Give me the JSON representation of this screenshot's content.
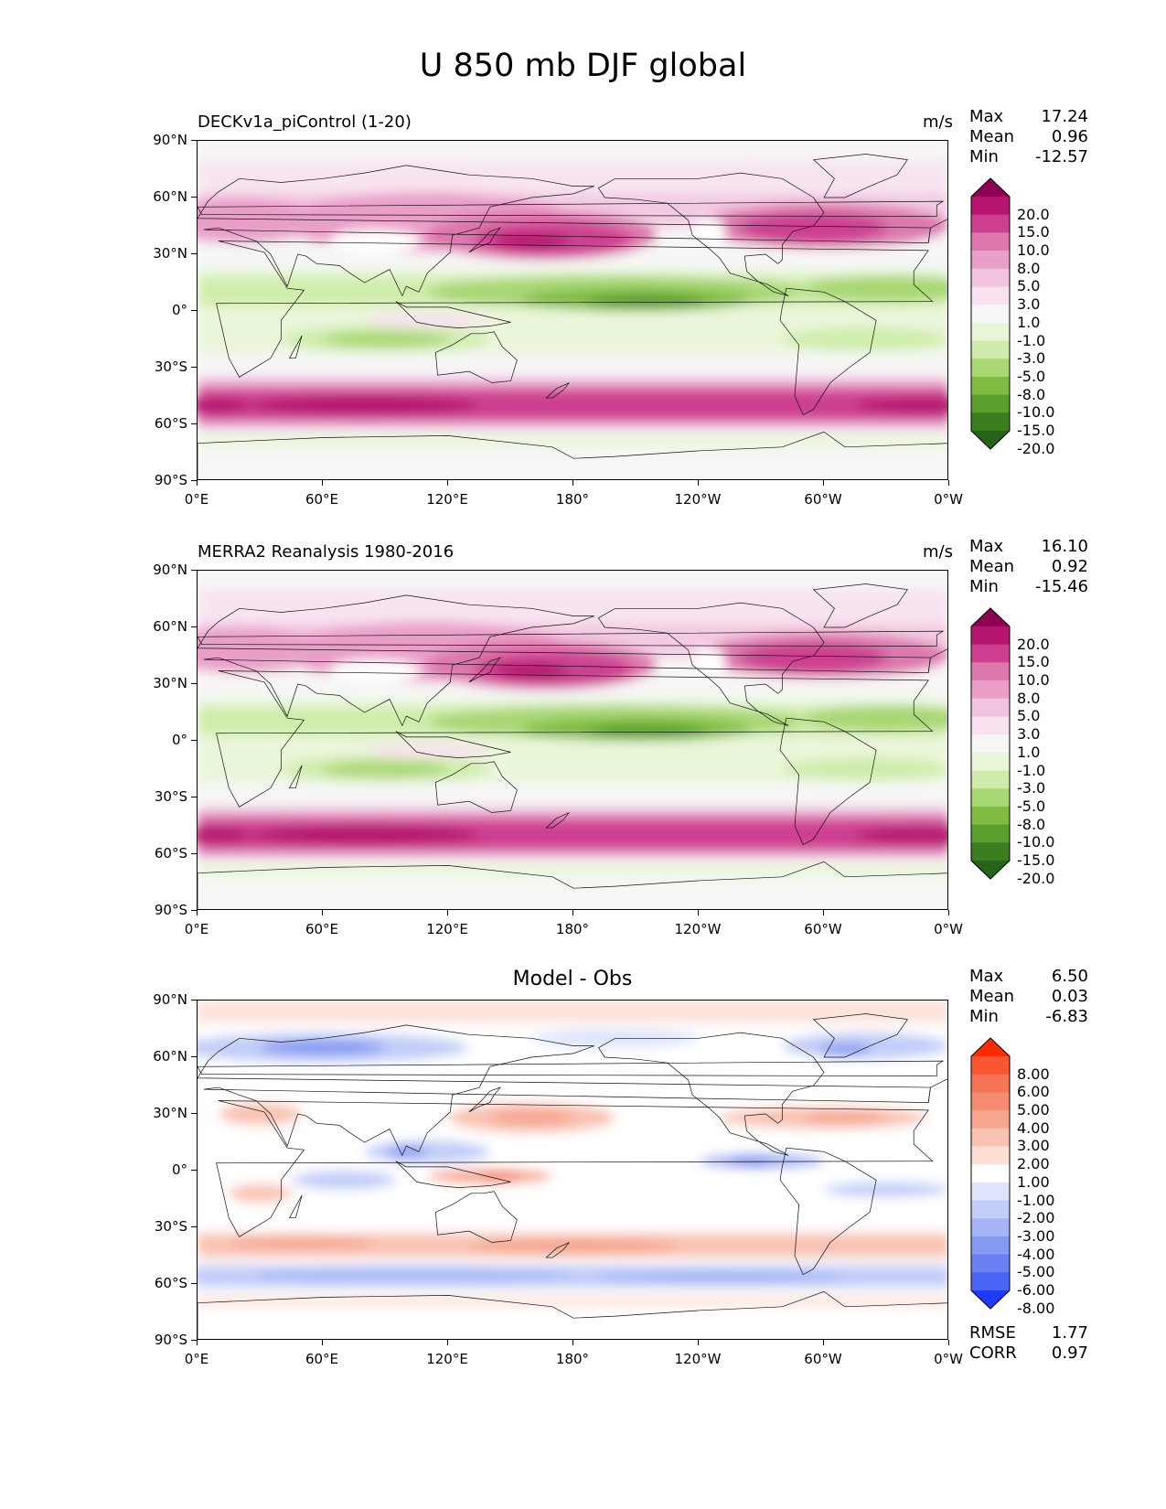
{
  "figure": {
    "title": "U 850 mb DJF global"
  },
  "axes": {
    "y_ticks": [
      "90°N",
      "60°N",
      "30°N",
      "0°",
      "30°S",
      "60°S",
      "90°S"
    ],
    "x_ticks": [
      "0°E",
      "60°E",
      "120°E",
      "180°",
      "120°W",
      "60°W",
      "0°W"
    ]
  },
  "panels": [
    {
      "title_left": "DECKv1a_piControl (1-20)",
      "title_center": "",
      "units": "m/s",
      "stats": [
        {
          "label": "Max",
          "value": "17.24"
        },
        {
          "label": "Mean",
          "value": "0.96"
        },
        {
          "label": "Min",
          "value": "-12.57"
        }
      ],
      "colorbar": {
        "labels": [
          "20.0",
          "15.0",
          "10.0",
          "8.0",
          "5.0",
          "3.0",
          "1.0",
          "-1.0",
          "-3.0",
          "-5.0",
          "-8.0",
          "-10.0",
          "-15.0",
          "-20.0"
        ],
        "colors": [
          "#8e0152",
          "#b5156e",
          "#cd3f91",
          "#de77ae",
          "#ea9fc9",
          "#f1c3df",
          "#f8e2ef",
          "#f6f6f6",
          "#e9f5d7",
          "#cfecaa",
          "#a9d774",
          "#7fbc41",
          "#5a9e2e",
          "#3b7e1f",
          "#276419"
        ]
      },
      "footer": []
    },
    {
      "title_left": "MERRA2 Reanalysis 1980-2016",
      "title_center": "",
      "units": "m/s",
      "stats": [
        {
          "label": "Max",
          "value": "16.10"
        },
        {
          "label": "Mean",
          "value": "0.92"
        },
        {
          "label": "Min",
          "value": "-15.46"
        }
      ],
      "colorbar": {
        "labels": [
          "20.0",
          "15.0",
          "10.0",
          "8.0",
          "5.0",
          "3.0",
          "1.0",
          "-1.0",
          "-3.0",
          "-5.0",
          "-8.0",
          "-10.0",
          "-15.0",
          "-20.0"
        ],
        "colors": [
          "#8e0152",
          "#b5156e",
          "#cd3f91",
          "#de77ae",
          "#ea9fc9",
          "#f1c3df",
          "#f8e2ef",
          "#f6f6f6",
          "#e9f5d7",
          "#cfecaa",
          "#a9d774",
          "#7fbc41",
          "#5a9e2e",
          "#3b7e1f",
          "#276419"
        ]
      },
      "footer": []
    },
    {
      "title_left": "",
      "title_center": "Model - Obs",
      "units": "",
      "stats": [
        {
          "label": "Max",
          "value": "6.50"
        },
        {
          "label": "Mean",
          "value": "0.03"
        },
        {
          "label": "Min",
          "value": "-6.83"
        }
      ],
      "colorbar": {
        "labels": [
          "8.00",
          "6.00",
          "5.00",
          "4.00",
          "3.00",
          "2.00",
          "1.00",
          "-1.00",
          "-2.00",
          "-3.00",
          "-4.00",
          "-5.00",
          "-6.00",
          "-8.00"
        ],
        "colors": [
          "#ff2a00",
          "#fa5632",
          "#f77454",
          "#f58c71",
          "#f6a68f",
          "#f9c3b2",
          "#fce0d6",
          "#ffffff",
          "#dde4fb",
          "#c2cdf8",
          "#a5b5f6",
          "#869af3",
          "#6880f2",
          "#4a64f5",
          "#1d3bff"
        ]
      },
      "footer": [
        {
          "label": "RMSE",
          "value": "1.77"
        },
        {
          "label": "CORR",
          "value": "0.97"
        }
      ]
    }
  ]
}
